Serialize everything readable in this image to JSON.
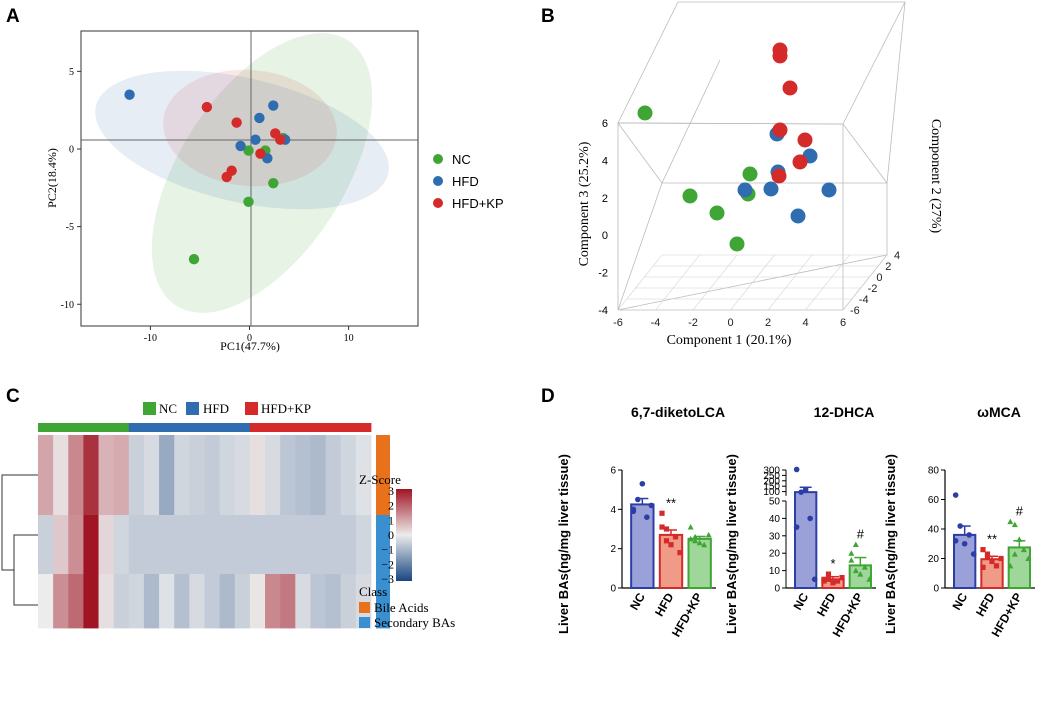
{
  "panels": {
    "A": "A",
    "B": "B",
    "C": "C",
    "D": "D"
  },
  "colors": {
    "NC": "#3fa535",
    "HFD": "#2f6db0",
    "HFD+KP": "#d42a2a",
    "bile": "#e8721c",
    "secondary": "#3a8fd0"
  },
  "chart_data": [
    {
      "id": "A",
      "type": "scatter",
      "xlabel": "PC1(47.7%)",
      "ylabel": "PC2(18.4%)",
      "xlim": [
        -17,
        17
      ],
      "ylim": [
        -11.4,
        7.6
      ],
      "xticks": [
        -10,
        0,
        10
      ],
      "yticks": [
        5,
        0,
        -5,
        -10
      ],
      "legend": [
        "NC",
        "HFD",
        "HFD+KP"
      ],
      "series": [
        {
          "name": "NC",
          "points": [
            [
              -5.6,
              -7.1
            ],
            [
              -0.1,
              -3.4
            ],
            [
              2.4,
              -2.2
            ],
            [
              -0.1,
              -0.1
            ],
            [
              1.6,
              -0.1
            ],
            [
              3.4,
              0.7
            ]
          ]
        },
        {
          "name": "HFD",
          "points": [
            [
              -12.1,
              3.5
            ],
            [
              -0.9,
              0.2
            ],
            [
              1.0,
              2.0
            ],
            [
              2.4,
              2.8
            ],
            [
              0.6,
              0.6
            ],
            [
              1.8,
              -0.6
            ],
            [
              3.6,
              0.6
            ]
          ]
        },
        {
          "name": "HFD+KP",
          "points": [
            [
              -4.3,
              2.7
            ],
            [
              -1.3,
              1.7
            ],
            [
              -1.8,
              -1.4
            ],
            [
              -2.3,
              -1.8
            ],
            [
              1.1,
              -0.3
            ],
            [
              2.6,
              1.0
            ],
            [
              3.1,
              0.6
            ]
          ]
        }
      ]
    },
    {
      "id": "B",
      "type": "scatter3d",
      "xlabel": "Component 1 (20.1%)",
      "ylabel": "Component 2 (27%)",
      "zlabel": "Component 3 (25.2%)",
      "xticks": [
        -6,
        -4,
        -2,
        0,
        2,
        4,
        6
      ],
      "yticks": [
        -6,
        -4,
        -2,
        0,
        2,
        4
      ],
      "zticks": [
        -4,
        -2,
        0,
        2,
        4,
        6
      ],
      "series": [
        {
          "name": "NC",
          "count": 6
        },
        {
          "name": "HFD",
          "count": 7
        },
        {
          "name": "HFD+KP",
          "count": 7
        }
      ]
    },
    {
      "id": "C",
      "type": "heatmap",
      "groups": [
        {
          "name": "NC",
          "count": 6
        },
        {
          "name": "HFD",
          "count": 8
        },
        {
          "name": "HFD+KP",
          "count": 8
        }
      ],
      "colorbar": {
        "title": "Z-Score",
        "ticks": [
          3,
          2,
          1,
          0,
          -1,
          -2,
          -3
        ]
      },
      "class_title": "Class",
      "classes": [
        "Bile Acids",
        "Secondary BAs"
      ],
      "row_classes": [
        "Bile Acids",
        "Secondary BAs",
        "Secondary BAs"
      ],
      "rows": [
        [
          1.0,
          0.2,
          1.4,
          2.6,
          0.8,
          0.9,
          -0.5,
          -0.3,
          -1.2,
          -0.4,
          -0.5,
          -0.6,
          -0.4,
          -0.3,
          0.2,
          -0.3,
          -0.7,
          -0.8,
          -0.9,
          -0.6,
          -0.4,
          -0.2
        ],
        [
          -0.5,
          0.5,
          1.3,
          3.0,
          0.3,
          -0.4,
          -0.6,
          -0.6,
          -0.6,
          -0.6,
          -0.6,
          -0.6,
          -0.6,
          -0.6,
          -0.6,
          -0.6,
          -0.6,
          -0.6,
          -0.6,
          -0.6,
          -0.6,
          -0.4
        ],
        [
          0.0,
          1.3,
          1.8,
          3.0,
          0.2,
          -0.5,
          -0.4,
          -0.9,
          -0.2,
          -0.8,
          -0.3,
          -0.6,
          -0.9,
          -0.5,
          0.1,
          1.4,
          1.6,
          -0.3,
          -0.7,
          -0.8,
          -0.5,
          -0.3
        ]
      ]
    },
    {
      "id": "D1",
      "type": "bar",
      "title": "6,7-diketoLCA",
      "ylabel": "Liver BAs(ng/mg liver tissue)",
      "categories": [
        "NC",
        "HFD",
        "HFD+KP"
      ],
      "values": [
        4.25,
        2.7,
        2.5
      ],
      "sem": [
        0.3,
        0.25,
        0.12
      ],
      "ylim": [
        0,
        6
      ],
      "yticks": [
        0,
        2,
        4,
        6
      ],
      "annotations": [
        "",
        "**",
        ""
      ],
      "points": [
        [
          4.0,
          4.5,
          5.3,
          3.6,
          4.2,
          3.9
        ],
        [
          3.8,
          3.0,
          2.2,
          2.6,
          1.8,
          3.1,
          2.4
        ],
        [
          3.1,
          2.6,
          2.3,
          2.2,
          2.7,
          2.5,
          2.4
        ]
      ]
    },
    {
      "id": "D2",
      "type": "bar",
      "title": "12-DHCA",
      "ylabel": "Liver BAs(ng/mg liver tissue)",
      "categories": [
        "NC",
        "HFD",
        "HFD+KP"
      ],
      "values": [
        95,
        5,
        13
      ],
      "sem": [
        45,
        1.5,
        4.5
      ],
      "axis_break": [
        50,
        50
      ],
      "ylim": [
        0,
        300
      ],
      "yticks": [
        0,
        10,
        20,
        30,
        40,
        50,
        100,
        150,
        200,
        250,
        300
      ],
      "annotations": [
        "",
        "*",
        "#"
      ],
      "points": [
        [
          305,
          95,
          120,
          40,
          5,
          35
        ],
        [
          5,
          8,
          3,
          4,
          6,
          4,
          5
        ],
        [
          20,
          25,
          8,
          12,
          5,
          16,
          10
        ]
      ]
    },
    {
      "id": "D3",
      "type": "bar",
      "title": "ωMCA",
      "ylabel": "Liver BAs(ng/mg liver tissue)",
      "categories": [
        "NC",
        "HFD",
        "HFD+KP"
      ],
      "values": [
        36,
        19.5,
        27.5
      ],
      "sem": [
        6,
        2,
        4.5
      ],
      "ylim": [
        0,
        80
      ],
      "yticks": [
        0,
        20,
        40,
        60,
        80
      ],
      "annotations": [
        "",
        "**",
        "#"
      ],
      "points": [
        [
          63,
          42,
          30,
          36,
          23,
          32
        ],
        [
          26,
          21,
          18,
          15,
          20,
          14,
          23
        ],
        [
          45,
          43,
          33,
          26,
          20,
          15,
          23
        ]
      ]
    }
  ]
}
